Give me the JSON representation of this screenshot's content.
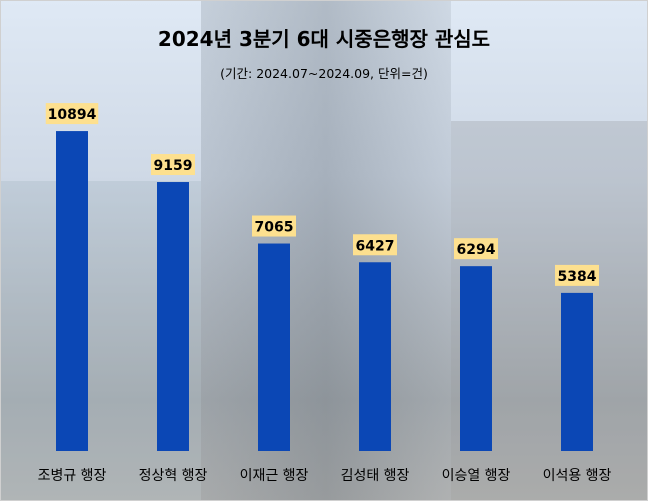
{
  "chart_data": {
    "type": "bar",
    "title": "2024년 3분기 6대 시중은행장 관심도",
    "subtitle": "(기간: 2024.07~2024.09, 단위=건)",
    "categories": [
      "조병규 행장",
      "정상혁 행장",
      "이재근 행장",
      "김성태 행장",
      "이승열 행장",
      "이석용 행장"
    ],
    "values": [
      10894,
      9159,
      7065,
      6427,
      6294,
      5384
    ],
    "xlabel": "",
    "ylabel": "",
    "ylim": [
      0,
      12000
    ],
    "grid": false,
    "colors": {
      "bar": "#0b47b5",
      "label_bg": "#fde08f"
    }
  }
}
